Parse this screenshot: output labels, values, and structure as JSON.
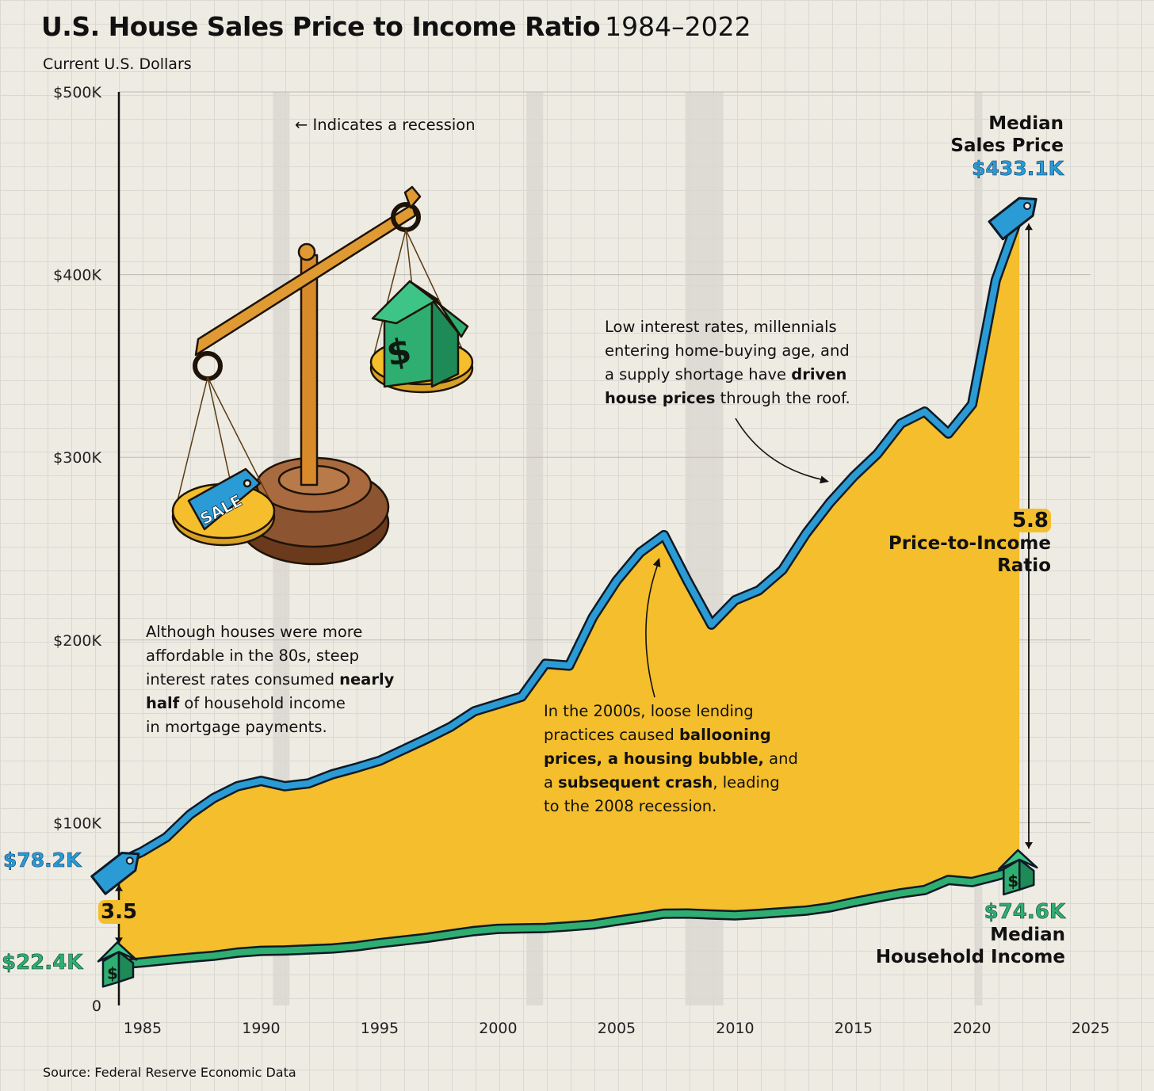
{
  "header": {
    "title": "U.S. House Sales Price to Income Ratio",
    "period": "1984–2022",
    "unit": "Current U.S. Dollars"
  },
  "source": "Source: Federal Reserve Economic Data",
  "legend": {
    "recession_note": "Indicates a recession"
  },
  "chart_data": {
    "type": "area",
    "xlim": [
      1984,
      2025
    ],
    "ylim": [
      0,
      500000
    ],
    "x_ticks": [
      "1985",
      "1990",
      "1995",
      "2000",
      "2005",
      "2010",
      "2015",
      "2020",
      "2025"
    ],
    "y_ticks": [
      "0",
      "$100K",
      "$200K",
      "$300K",
      "$400K",
      "$500K"
    ],
    "grid": true,
    "recessions": [
      [
        1990.5,
        1991.2
      ],
      [
        2001.2,
        2001.9
      ],
      [
        2007.9,
        2009.5
      ],
      [
        2020.1,
        2020.4
      ]
    ],
    "x": [
      1984,
      1985,
      1986,
      1987,
      1988,
      1989,
      1990,
      1991,
      1992,
      1993,
      1994,
      1995,
      1996,
      1997,
      1998,
      1999,
      2000,
      2001,
      2002,
      2003,
      2004,
      2005,
      2006,
      2007,
      2008,
      2009,
      2010,
      2011,
      2012,
      2013,
      2014,
      2015,
      2016,
      2017,
      2018,
      2019,
      2020,
      2021,
      2022
    ],
    "series": [
      {
        "name": "Median Sales Price",
        "values": [
          78200,
          84300,
          92000,
          104500,
          113500,
          120000,
          122900,
          120000,
          121500,
          126500,
          130000,
          133900,
          140000,
          146000,
          152500,
          161000,
          165000,
          169000,
          187000,
          186000,
          212500,
          232500,
          248000,
          257400,
          232100,
          208400,
          221800,
          227200,
          238400,
          258400,
          275200,
          289500,
          301800,
          318500,
          325000,
          313000,
          329000,
          397000,
          433100
        ],
        "end_label": "$433.1K",
        "start_label": "$78.2K"
      },
      {
        "name": "Median Household Income",
        "values": [
          22400,
          23600,
          24900,
          26100,
          27200,
          28900,
          29900,
          30100,
          30600,
          31200,
          32300,
          34100,
          35500,
          37000,
          38900,
          40700,
          41900,
          42200,
          42400,
          43300,
          44300,
          46300,
          48200,
          50200,
          50300,
          49800,
          49300,
          50100,
          51000,
          51900,
          53700,
          56500,
          59000,
          61400,
          63200,
          68700,
          67500,
          70800,
          74600
        ],
        "end_label": "$74.6K",
        "start_label": "$22.4K"
      }
    ],
    "ratios": [
      {
        "year": 1984,
        "value": "3.5"
      },
      {
        "year": 2022,
        "value": "5.8",
        "label": "Price-to-Income Ratio"
      }
    ],
    "colors": {
      "price": "#2a9bd5",
      "income": "#2fae72",
      "fill": "#f4be2c",
      "outline": "#0e1a26"
    }
  },
  "annotations": {
    "eighties": [
      "Although houses were more",
      "affordable in the 80s, steep",
      "interest rates consumed ",
      "nearly",
      "half",
      " of household income",
      "in mortgage payments."
    ],
    "bubble": [
      "In the 2000s, loose lending",
      "practices caused ",
      "ballooning",
      "prices, a housing bubble,",
      " and",
      "a ",
      "subsequent crash",
      ", leading",
      "to the 2008 recession."
    ],
    "recent": [
      "Low interest rates, millennials",
      "entering home-buying age, and",
      "a supply shortage have ",
      "driven",
      "house prices",
      " through the roof."
    ]
  },
  "end_labels": {
    "price": [
      "Median",
      "Sales Price"
    ],
    "income": [
      "Median",
      "Household Income"
    ],
    "ratio": [
      "Price-to-Income",
      "Ratio"
    ]
  },
  "illustration": {
    "tag_text": "SALE",
    "icons": [
      "balance-scale-icon",
      "house-icon",
      "price-tag-icon"
    ]
  }
}
